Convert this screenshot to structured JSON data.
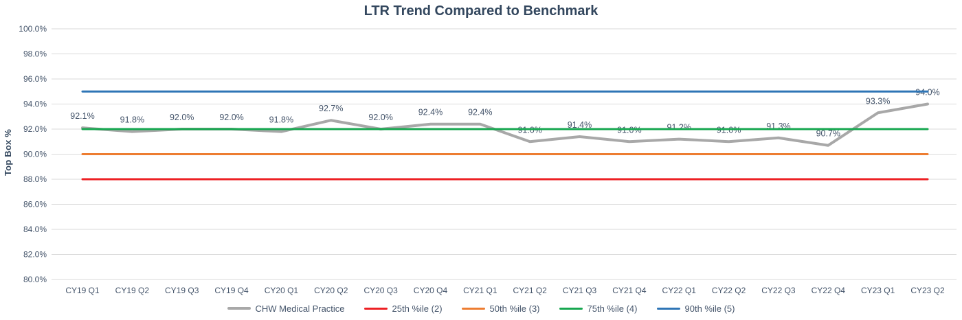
{
  "chart_data": {
    "type": "line",
    "title": "LTR Trend Compared to Benchmark",
    "ylabel": "Top Box %",
    "xlabel": "",
    "ylim": [
      80,
      100
    ],
    "ytick_step": 2,
    "ytick_labels": [
      "100.0%",
      "98.0%",
      "96.0%",
      "94.0%",
      "92.0%",
      "90.0%",
      "88.0%",
      "86.0%",
      "84.0%",
      "82.0%",
      "80.0%"
    ],
    "categories": [
      "CY19 Q1",
      "CY19 Q2",
      "CY19 Q3",
      "CY19 Q4",
      "CY20 Q1",
      "CY20 Q2",
      "CY20 Q3",
      "CY20 Q4",
      "CY21 Q1",
      "CY21 Q2",
      "CY21 Q3",
      "CY21 Q4",
      "CY22 Q1",
      "CY22 Q2",
      "CY22 Q3",
      "CY22 Q4",
      "CY23 Q1",
      "CY23 Q2"
    ],
    "grid": true,
    "legend_position": "bottom",
    "colors": {
      "grid_line": "#D9D9D9",
      "axis_text": "#44546A",
      "title_text": "#33475E"
    },
    "series": [
      {
        "name": "CHW Medical Practice",
        "color": "#A8A8A8",
        "stroke_width": 4,
        "values": [
          92.1,
          91.8,
          92.0,
          92.0,
          91.8,
          92.7,
          92.0,
          92.4,
          92.4,
          91.0,
          91.4,
          91.0,
          91.2,
          91.0,
          91.3,
          90.7,
          93.3,
          94.0
        ],
        "data_labels": [
          "92.1%",
          "91.8%",
          "92.0%",
          "92.0%",
          "91.8%",
          "92.7%",
          "92.0%",
          "92.4%",
          "92.4%",
          "91.0%",
          "91.4%",
          "91.0%",
          "91.2%",
          "91.0%",
          "91.3%",
          "90.7%",
          "93.3%",
          "94.0%"
        ]
      },
      {
        "name": "25th %ile (2)",
        "color": "#ED2024",
        "stroke_width": 3,
        "benchmark_value": 88
      },
      {
        "name": "50th %ile (3)",
        "color": "#ED7D31",
        "stroke_width": 3,
        "benchmark_value": 90
      },
      {
        "name": "75th %ile (4)",
        "color": "#17A750",
        "stroke_width": 3,
        "benchmark_value": 92
      },
      {
        "name": "90th %ile (5)",
        "color": "#2E75B6",
        "stroke_width": 3,
        "benchmark_value": 95
      }
    ]
  }
}
